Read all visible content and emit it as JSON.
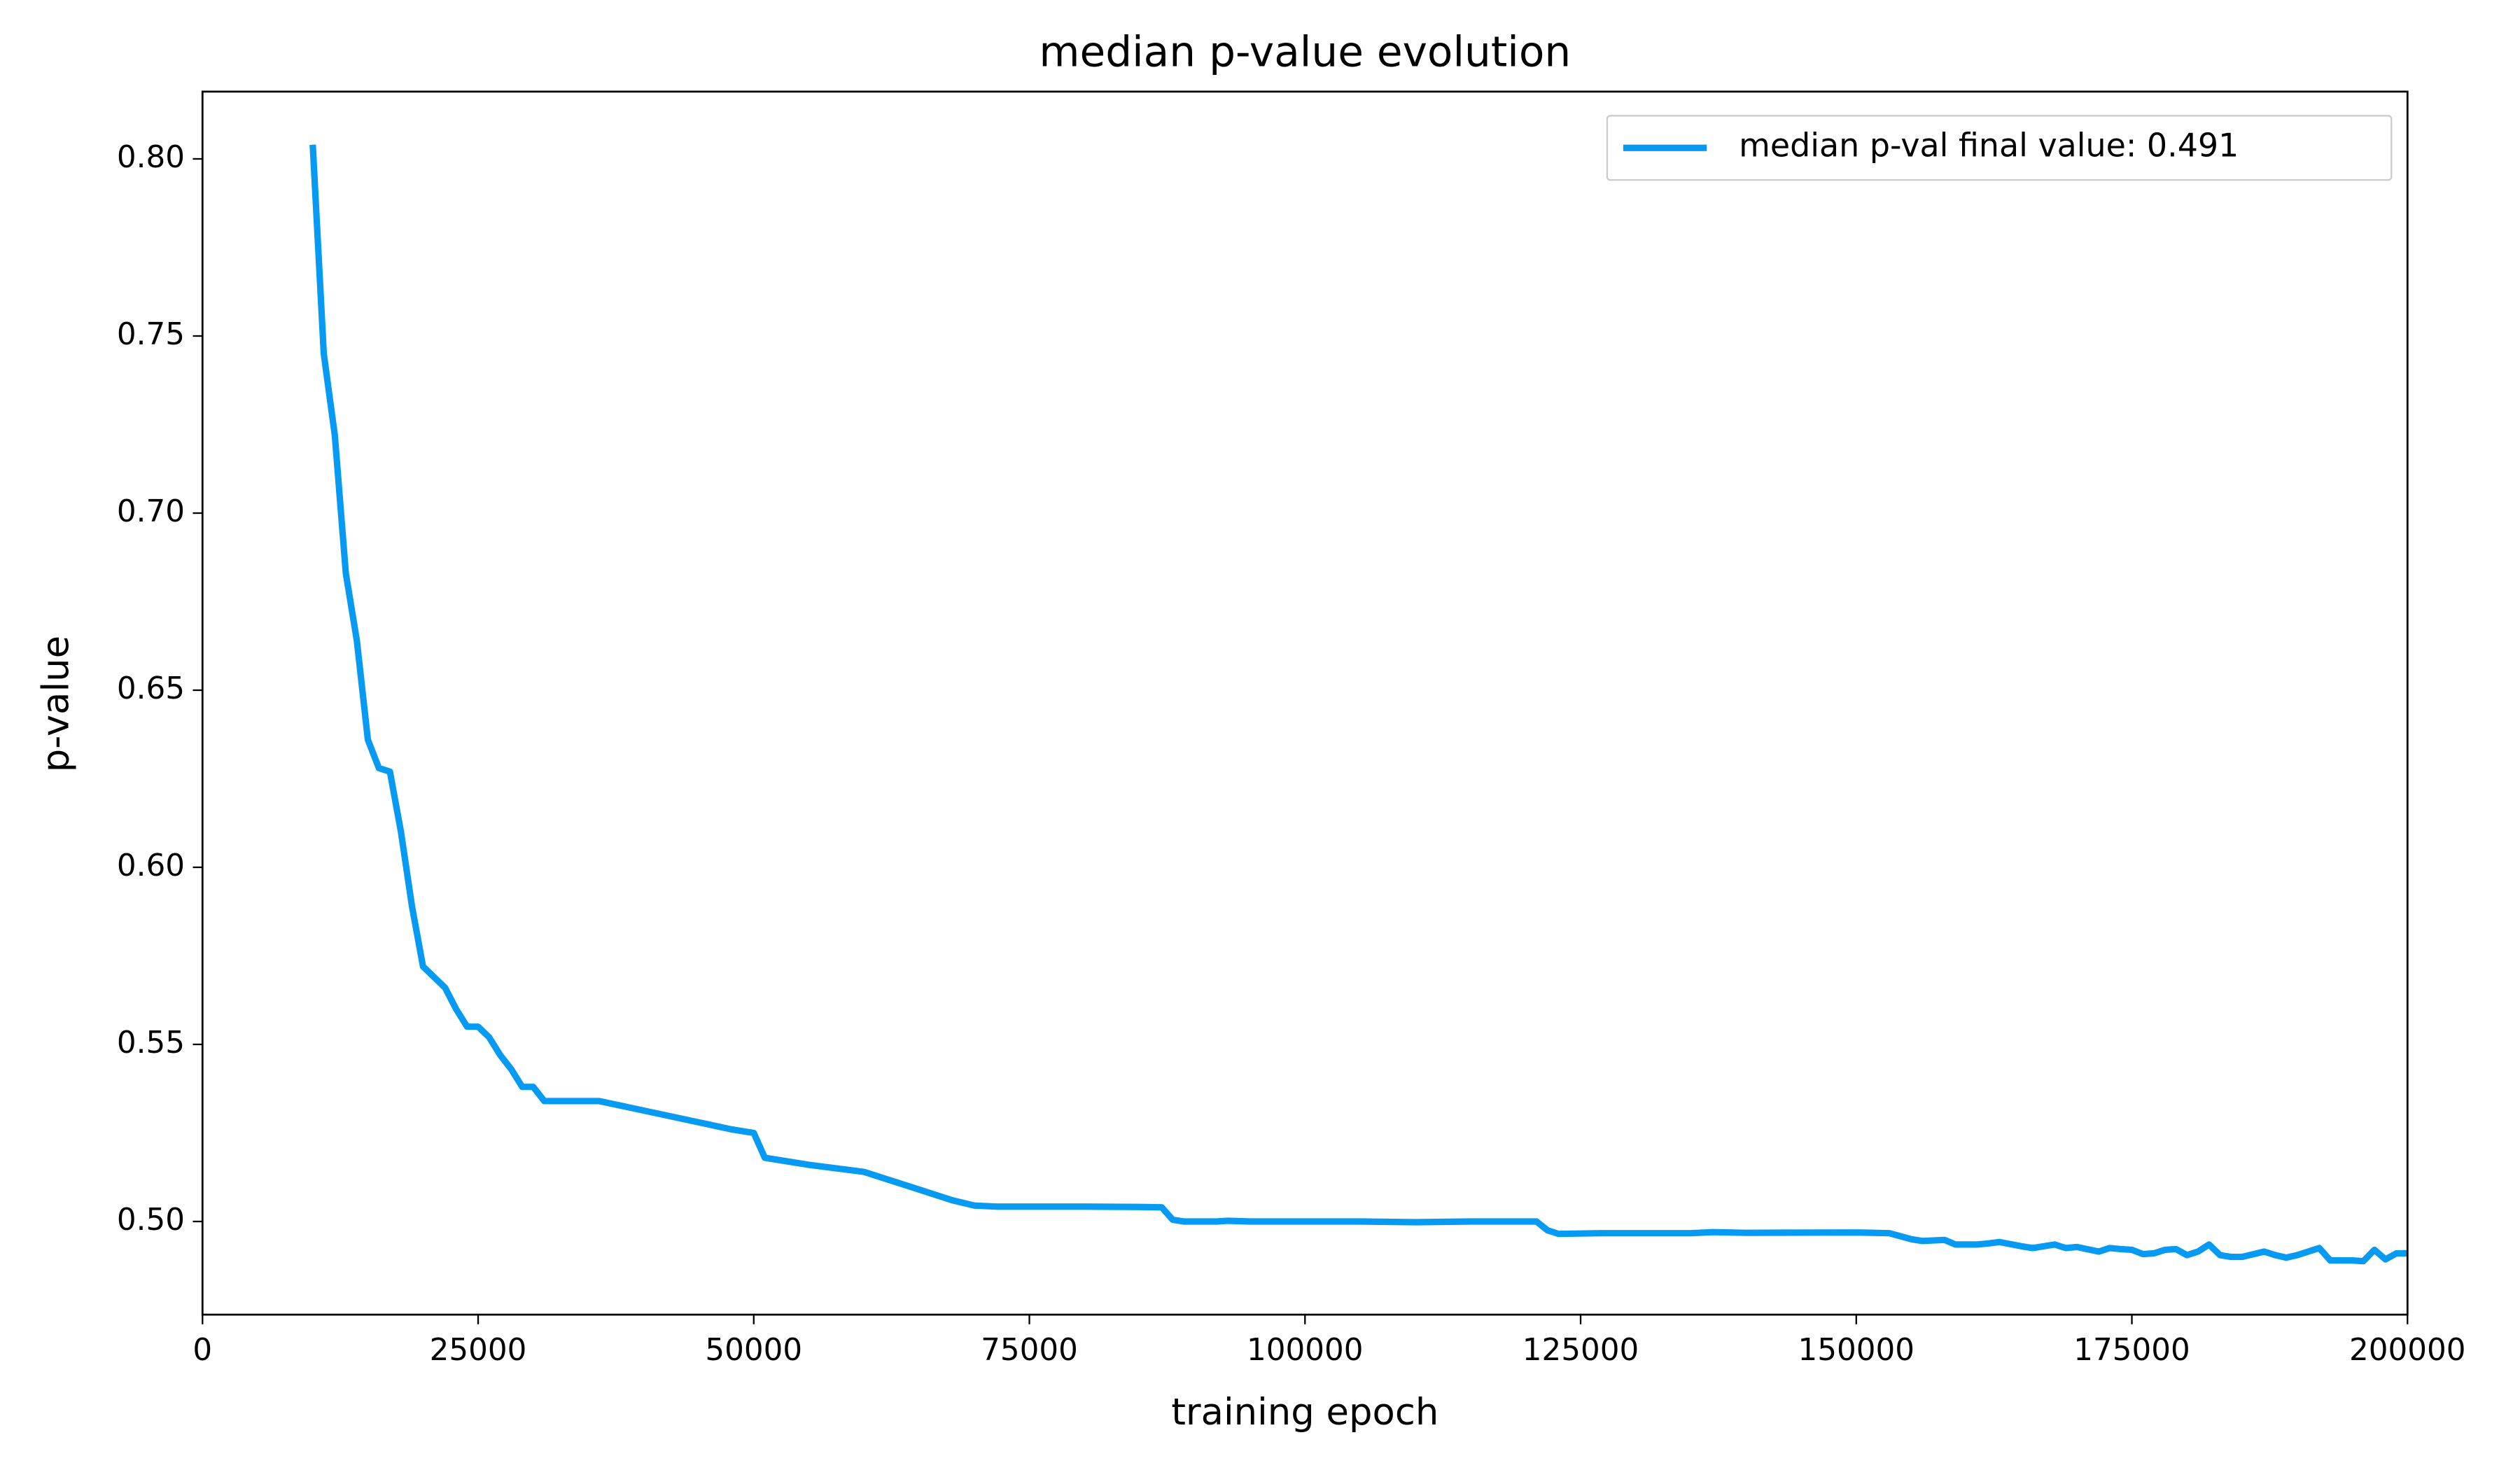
{
  "chart_data": {
    "type": "line",
    "title": "median p-value evolution",
    "x_label": "training epoch",
    "y_label": "p-value",
    "xlim": [
      0,
      200000
    ],
    "ylim": [
      0.4737,
      0.819
    ],
    "xticks": [
      0,
      25000,
      50000,
      75000,
      100000,
      125000,
      150000,
      175000,
      200000
    ],
    "yticks": [
      {
        "value": 0.5,
        "label": "0.50"
      },
      0.55,
      {
        "value": 0.6,
        "label": "0.60"
      },
      0.65,
      {
        "value": 0.7,
        "label": "0.70"
      },
      0.75,
      {
        "value": 0.8,
        "label": "0.80"
      }
    ],
    "grid": false,
    "legend": "upper right",
    "series": [
      {
        "name": "median p-val final value: 0.491",
        "color": "#069af3",
        "x": [
          10000,
          11000,
          12000,
          13000,
          14000,
          15000,
          16000,
          17000,
          18000,
          19000,
          20000,
          21000,
          22000,
          23000,
          24000,
          25000,
          26000,
          27000,
          28000,
          29000,
          30000,
          31000,
          33000,
          36000,
          39000,
          42000,
          45000,
          48000,
          50000,
          51000,
          55000,
          60000,
          62000,
          65000,
          68000,
          70000,
          72000,
          75000,
          80000,
          85000,
          87000,
          88000,
          89000,
          92000,
          93000,
          95000,
          100000,
          105000,
          110000,
          115000,
          121000,
          122000,
          123000,
          127000,
          135000,
          137000,
          140000,
          150000,
          153000,
          155000,
          156000,
          158000,
          159000,
          161000,
          162000,
          163000,
          165000,
          166000,
          168000,
          169000,
          170000,
          172000,
          173000,
          174000,
          175000,
          176000,
          177000,
          178000,
          179000,
          180000,
          181000,
          182000,
          183000,
          184000,
          185000,
          187000,
          188000,
          189000,
          190000,
          191000,
          192000,
          193000,
          195000,
          196000,
          197000,
          198000,
          199000,
          200000
        ],
        "values": [
          0.804,
          0.745,
          0.722,
          0.683,
          0.664,
          0.636,
          0.628,
          0.627,
          0.61,
          0.589,
          0.572,
          0.569,
          0.566,
          0.56,
          0.555,
          0.555,
          0.552,
          0.547,
          0.543,
          0.538,
          0.538,
          0.534,
          0.534,
          0.534,
          0.532,
          0.53,
          0.528,
          0.526,
          0.525,
          0.518,
          0.516,
          0.514,
          0.512,
          0.509,
          0.506,
          0.5045,
          0.5042,
          0.5042,
          0.5042,
          0.5041,
          0.504,
          0.5005,
          0.5,
          0.5,
          0.5002,
          0.5,
          0.5,
          0.5,
          0.4998,
          0.5,
          0.5,
          0.4975,
          0.4965,
          0.4967,
          0.4967,
          0.497,
          0.4968,
          0.4969,
          0.4967,
          0.495,
          0.4945,
          0.4948,
          0.4935,
          0.4935,
          0.4938,
          0.4942,
          0.493,
          0.4925,
          0.4935,
          0.4925,
          0.4928,
          0.4915,
          0.4925,
          0.4922,
          0.492,
          0.4908,
          0.491,
          0.492,
          0.4922,
          0.4905,
          0.4915,
          0.4935,
          0.4905,
          0.49,
          0.49,
          0.4915,
          0.4905,
          0.4898,
          0.4905,
          0.4915,
          0.4925,
          0.489,
          0.489,
          0.4888,
          0.492,
          0.4893,
          0.491,
          0.491
        ]
      }
    ]
  }
}
